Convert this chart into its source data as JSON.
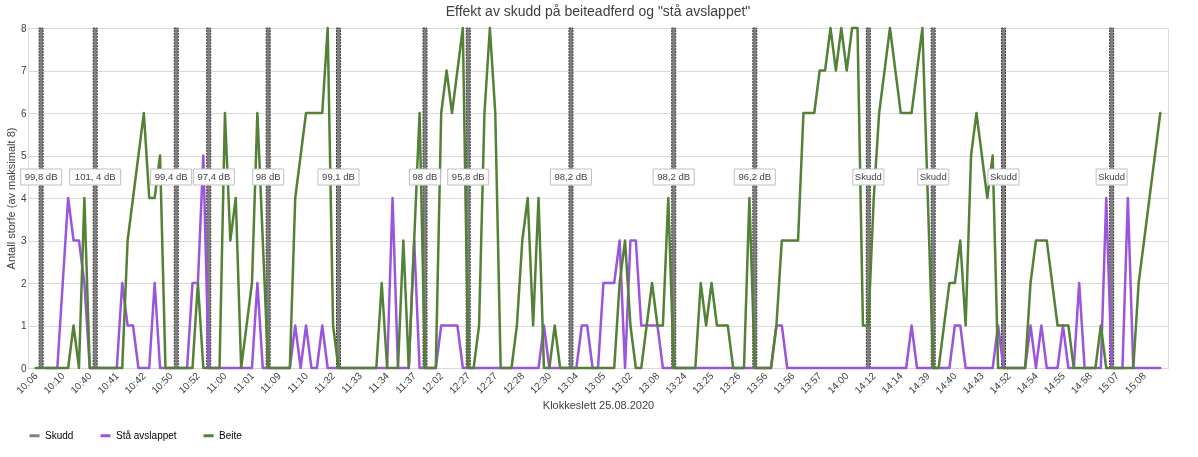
{
  "chart_data": {
    "type": "line",
    "title": "Effekt av skudd på beiteadferd og \"stå avslappet\"",
    "xlabel": "Klokkeslett 25.08.2020",
    "ylabel": "Antall storfe (av maksimalt 8)",
    "categories": [
      "10:06",
      null,
      null,
      null,
      null,
      "10:10",
      null,
      null,
      null,
      null,
      "10:40",
      null,
      null,
      null,
      null,
      "10:41",
      null,
      null,
      null,
      null,
      "10:42",
      null,
      null,
      null,
      null,
      "10:50",
      null,
      null,
      null,
      null,
      "10:52",
      null,
      null,
      null,
      null,
      "11:00",
      null,
      null,
      null,
      null,
      "11:01",
      null,
      null,
      null,
      null,
      "11:09",
      null,
      null,
      null,
      null,
      "11:10",
      null,
      null,
      null,
      null,
      "11:32",
      null,
      null,
      null,
      null,
      "11:33",
      null,
      null,
      null,
      null,
      "11:34",
      null,
      null,
      null,
      null,
      "11:37",
      null,
      null,
      null,
      null,
      "12:02",
      null,
      null,
      null,
      null,
      "12:27",
      null,
      null,
      null,
      null,
      "12:27",
      null,
      null,
      null,
      null,
      "12:28",
      null,
      null,
      null,
      null,
      "12:30",
      null,
      null,
      null,
      null,
      "13:04",
      null,
      null,
      null,
      null,
      "13:05",
      null,
      null,
      null,
      null,
      "13:02",
      null,
      null,
      null,
      null,
      "13:08",
      null,
      null,
      null,
      null,
      "13:24",
      null,
      null,
      null,
      null,
      "13:25",
      null,
      null,
      null,
      null,
      "13:26",
      null,
      null,
      null,
      null,
      "13:56",
      null,
      null,
      null,
      null,
      "13:56",
      null,
      null,
      null,
      null,
      "13:57",
      null,
      null,
      null,
      null,
      "14:00",
      null,
      null,
      null,
      null,
      "14:12",
      null,
      null,
      null,
      null,
      "14:14",
      null,
      null,
      null,
      null,
      "14:39",
      null,
      null,
      null,
      null,
      "14:40",
      null,
      null,
      null,
      null,
      "14:43",
      null,
      null,
      null,
      null,
      "14:52",
      null,
      null,
      null,
      null,
      "14:54",
      null,
      null,
      null,
      null,
      "14:55",
      null,
      null,
      null,
      null,
      "14:58",
      null,
      null,
      null,
      null,
      "15:07",
      null,
      null,
      null,
      null,
      "15:08",
      null,
      null,
      null
    ],
    "series": [
      {
        "name": "Skudd",
        "type": "bar",
        "color": "#808080",
        "values": [
          null,
          8,
          null,
          null,
          null,
          null,
          null,
          null,
          null,
          null,
          null,
          8,
          null,
          null,
          null,
          null,
          null,
          null,
          null,
          null,
          null,
          null,
          null,
          null,
          null,
          null,
          8,
          null,
          null,
          null,
          null,
          null,
          8,
          null,
          null,
          null,
          null,
          null,
          null,
          null,
          null,
          null,
          null,
          8,
          null,
          null,
          null,
          null,
          null,
          null,
          null,
          null,
          null,
          null,
          null,
          null,
          8,
          null,
          null,
          null,
          null,
          null,
          null,
          null,
          null,
          null,
          null,
          null,
          null,
          null,
          null,
          null,
          8,
          null,
          null,
          null,
          null,
          null,
          null,
          null,
          8,
          null,
          null,
          null,
          null,
          null,
          null,
          null,
          null,
          null,
          null,
          null,
          null,
          null,
          null,
          null,
          null,
          null,
          null,
          8,
          null,
          null,
          null,
          null,
          null,
          null,
          null,
          null,
          null,
          null,
          null,
          null,
          null,
          null,
          null,
          null,
          null,
          null,
          8,
          null,
          null,
          null,
          null,
          null,
          null,
          null,
          null,
          null,
          null,
          null,
          null,
          null,
          null,
          8,
          null,
          null,
          null,
          null,
          null,
          null,
          null,
          null,
          null,
          null,
          null,
          null,
          null,
          null,
          null,
          null,
          null,
          null,
          null,
          null,
          8,
          null,
          null,
          null,
          null,
          null,
          null,
          null,
          null,
          null,
          null,
          null,
          8,
          null,
          null,
          null,
          null,
          null,
          null,
          null,
          null,
          null,
          null,
          null,
          null,
          8,
          null,
          null,
          null,
          null,
          null,
          null,
          null,
          null,
          null,
          null,
          null,
          null,
          null,
          null,
          null,
          null,
          null,
          null,
          null,
          8,
          null,
          null,
          null,
          null,
          null,
          null,
          null,
          null,
          null
        ]
      },
      {
        "name": "Stå avslappet",
        "color": "#9b55dc",
        "values": [
          null,
          null,
          0,
          0,
          0,
          2,
          4,
          3,
          3,
          2,
          0,
          0,
          0,
          0,
          0,
          0,
          2,
          1,
          1,
          0,
          0,
          0,
          2,
          0,
          0,
          0,
          0,
          0,
          0,
          2,
          2,
          5,
          0,
          0,
          0,
          0,
          0,
          0,
          0,
          0,
          0,
          2,
          0,
          0,
          0,
          0,
          0,
          0,
          1,
          0,
          1,
          0,
          0,
          1,
          0,
          0,
          0,
          0,
          0,
          0,
          0,
          0,
          0,
          0,
          0,
          0,
          4,
          0,
          0,
          0,
          3,
          0,
          0,
          0,
          0,
          1,
          1,
          1,
          1,
          0,
          0,
          0,
          0,
          0,
          0,
          0,
          0,
          0,
          0,
          0,
          0,
          0,
          0,
          0,
          1,
          0,
          0,
          0,
          0,
          0,
          0,
          1,
          1,
          0,
          0,
          2,
          2,
          2,
          3,
          0,
          3,
          3,
          1,
          1,
          1,
          1,
          0,
          0,
          0,
          0,
          0,
          0,
          0,
          0,
          0,
          0,
          0,
          0,
          0,
          0,
          0,
          0,
          0,
          0,
          0,
          0,
          0,
          1,
          1,
          0,
          0,
          0,
          0,
          0,
          0,
          0,
          0,
          0,
          0,
          0,
          0,
          0,
          0,
          0,
          0,
          0,
          0,
          0,
          0,
          0,
          0,
          0,
          1,
          0,
          0,
          0,
          0,
          0,
          0,
          0,
          1,
          1,
          0,
          0,
          0,
          0,
          0,
          0,
          1,
          0,
          0,
          0,
          0,
          0,
          1,
          0,
          1,
          0,
          0,
          0,
          1,
          0,
          0,
          2,
          0,
          0,
          0,
          0,
          4,
          0,
          0,
          0,
          4,
          0,
          0,
          0,
          0,
          0,
          0
        ]
      },
      {
        "name": "Beite",
        "color": "#538135",
        "values": [
          0,
          0,
          0,
          0,
          0,
          0,
          0,
          1,
          0,
          4,
          0,
          0,
          0,
          0,
          0,
          0,
          0,
          3,
          4,
          5,
          6,
          4,
          4,
          5,
          0,
          0,
          0,
          0,
          0,
          0,
          2,
          0,
          0,
          0,
          0,
          6,
          3,
          4,
          0,
          1,
          2,
          6,
          3,
          0,
          0,
          0,
          0,
          0,
          4,
          5,
          6,
          6,
          6,
          6,
          8,
          1,
          0,
          0,
          0,
          0,
          0,
          0,
          0,
          0,
          2,
          0,
          0,
          0,
          3,
          0,
          3,
          6,
          0,
          0,
          0,
          6,
          7,
          6,
          7,
          8,
          0,
          0,
          1,
          6,
          8,
          6,
          0,
          0,
          0,
          1,
          3,
          4,
          1,
          4,
          0,
          0,
          1,
          0,
          0,
          0,
          0,
          0,
          0,
          0,
          0,
          0,
          0,
          0,
          2,
          3,
          1,
          0,
          0,
          1,
          2,
          1,
          1,
          4,
          0,
          0,
          0,
          0,
          0,
          2,
          1,
          2,
          1,
          1,
          1,
          0,
          0,
          0,
          4,
          0,
          0,
          0,
          0,
          1,
          3,
          3,
          3,
          3,
          6,
          6,
          6,
          7,
          7,
          8,
          7,
          8,
          7,
          8,
          8,
          1,
          1,
          4,
          6,
          7,
          8,
          7,
          6,
          6,
          6,
          7,
          8,
          4,
          0,
          0,
          1,
          2,
          2,
          3,
          1,
          5,
          6,
          5,
          4,
          5,
          0,
          0,
          0,
          0,
          0,
          0,
          2,
          3,
          3,
          3,
          2,
          1,
          1,
          1,
          0,
          0,
          0,
          0,
          0,
          1,
          0,
          0,
          0,
          0,
          0,
          0,
          2,
          3,
          4,
          5,
          6
        ]
      }
    ],
    "annotations": [
      "99,8 dB",
      "101, 4 dB",
      "99,4 dB",
      "97,4 dB",
      "98 dB",
      "99,1 dB",
      "98 dB",
      "95,8 dB",
      "98,2 dB",
      "98,2 dB",
      "96,2 dB",
      "Skudd",
      "Skudd",
      "Skudd",
      "Skudd"
    ],
    "ylim": [
      0,
      8
    ],
    "yticks": [
      0,
      1,
      2,
      3,
      4,
      5,
      6,
      7,
      8
    ],
    "grid": "y",
    "legend": "bottom",
    "line_style": "solid"
  }
}
